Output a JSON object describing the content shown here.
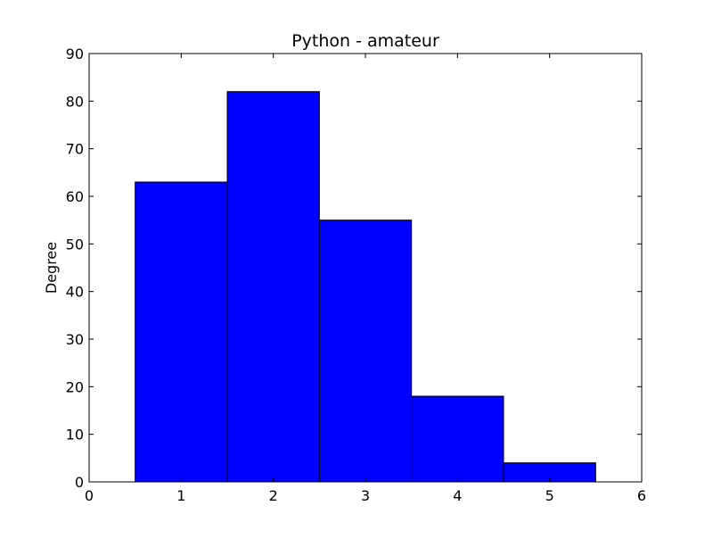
{
  "chart_data": {
    "type": "bar",
    "title": "Python - amateur",
    "xlabel": "",
    "ylabel": "Degree",
    "categories": [
      1,
      2,
      3,
      4,
      5
    ],
    "values": [
      63,
      82,
      55,
      18,
      4
    ],
    "xlim": [
      0,
      6
    ],
    "ylim": [
      0,
      90
    ],
    "xticks": [
      "0",
      "1",
      "2",
      "3",
      "4",
      "5",
      "6"
    ],
    "yticks": [
      "0",
      "10",
      "20",
      "30",
      "40",
      "50",
      "60",
      "70",
      "80",
      "90"
    ],
    "bar_width": 1,
    "grid": false,
    "bar_color": "#0000ff",
    "edge_color": "#000000"
  }
}
